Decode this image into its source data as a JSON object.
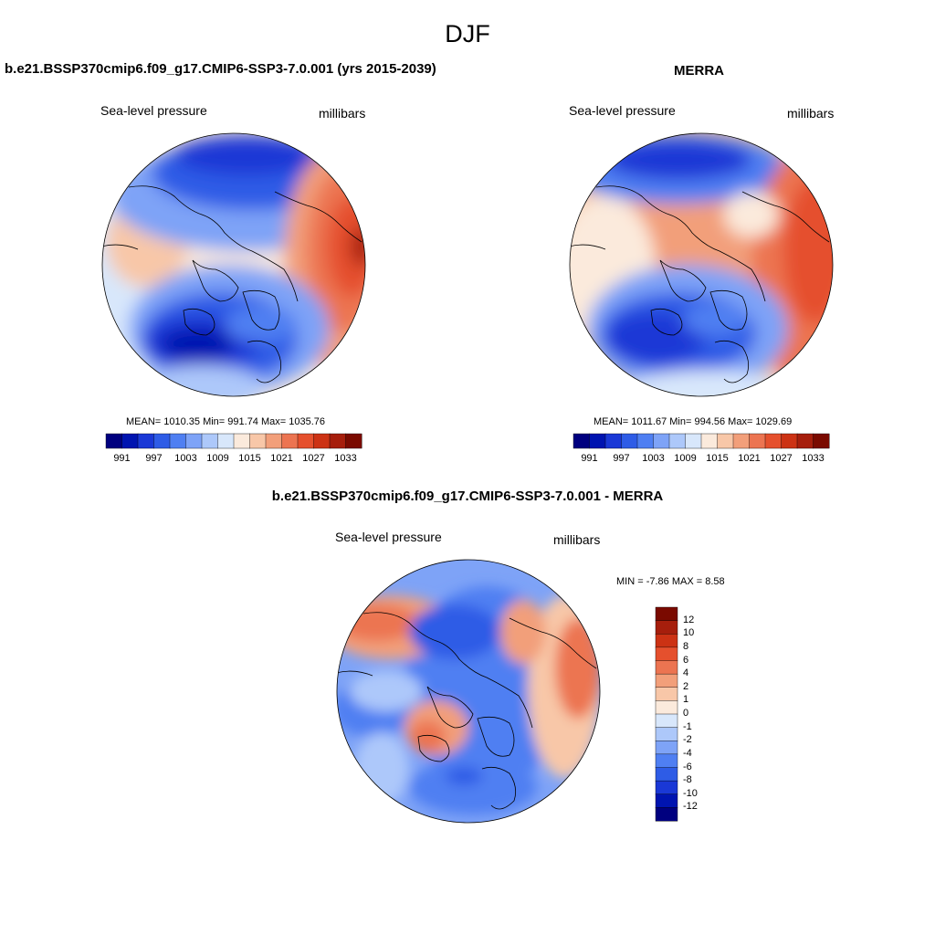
{
  "main_title": "DJF",
  "colors": {
    "pressure_palette": [
      "#00007f",
      "#0014b0",
      "#1a38d6",
      "#2e5ce6",
      "#4f7ff2",
      "#7ea3f7",
      "#adc8fa",
      "#d8e7fb",
      "#fbeadc",
      "#f8c7a8",
      "#f29f7a",
      "#ec7451",
      "#e5502d",
      "#cc3214",
      "#a61e0c",
      "#7a0a00"
    ],
    "diff_palette": [
      "#00007f",
      "#0014b0",
      "#1a38d6",
      "#2e5ce6",
      "#4f7ff2",
      "#7ea3f7",
      "#adc8fa",
      "#d8e7fb",
      "#fbeadc",
      "#f8c7a8",
      "#f29f7a",
      "#ec7451",
      "#e5502d",
      "#cc3214",
      "#a61e0c",
      "#7a0a00"
    ],
    "coastline": "#000000"
  },
  "panels": [
    {
      "title": "b.e21.BSSP370cmip6.f09_g17.CMIP6-SSP3-7.0.001 (yrs 2015-2039)",
      "variable": "Sea-level pressure",
      "units": "millibars",
      "stats": "MEAN= 1010.35  Min= 991.74  Max= 1035.76"
    },
    {
      "title": "MERRA",
      "variable": "Sea-level pressure",
      "units": "millibars",
      "stats": "MEAN= 1011.67  Min= 994.56  Max= 1029.69"
    },
    {
      "title": "b.e21.BSSP370cmip6.f09_g17.CMIP6-SSP3-7.0.001 - MERRA",
      "variable": "Sea-level pressure",
      "units": "millibars",
      "stats": "MIN =  -7.86 MAX =   8.58"
    }
  ],
  "chart_data": [
    {
      "type": "heatmap",
      "title": "b.e21.BSSP370cmip6.f09_g17.CMIP6-SSP3-7.0.001 (yrs 2015-2039)",
      "projection": "polar stereographic (north pole)",
      "field": "Sea-level pressure",
      "units": "millibars",
      "mean": 1010.35,
      "min": 991.74,
      "max": 1035.76,
      "colorbar_labels": [
        "991",
        "997",
        "1003",
        "1009",
        "1015",
        "1021",
        "1027",
        "1033"
      ]
    },
    {
      "type": "heatmap",
      "title": "MERRA",
      "projection": "polar stereographic (north pole)",
      "field": "Sea-level pressure",
      "units": "millibars",
      "mean": 1011.67,
      "min": 994.56,
      "max": 1029.69,
      "colorbar_labels": [
        "991",
        "997",
        "1003",
        "1009",
        "1015",
        "1021",
        "1027",
        "1033"
      ]
    },
    {
      "type": "heatmap",
      "title": "b.e21.BSSP370cmip6.f09_g17.CMIP6-SSP3-7.0.001 - MERRA",
      "projection": "polar stereographic (north pole)",
      "field": "Sea-level pressure",
      "units": "millibars",
      "min": -7.86,
      "max": 8.58,
      "colorbar_labels": [
        "12",
        "10",
        "8",
        "6",
        "4",
        "2",
        "1",
        "0",
        "-1",
        "-2",
        "-4",
        "-6",
        "-8",
        "-10",
        "-12"
      ]
    }
  ]
}
